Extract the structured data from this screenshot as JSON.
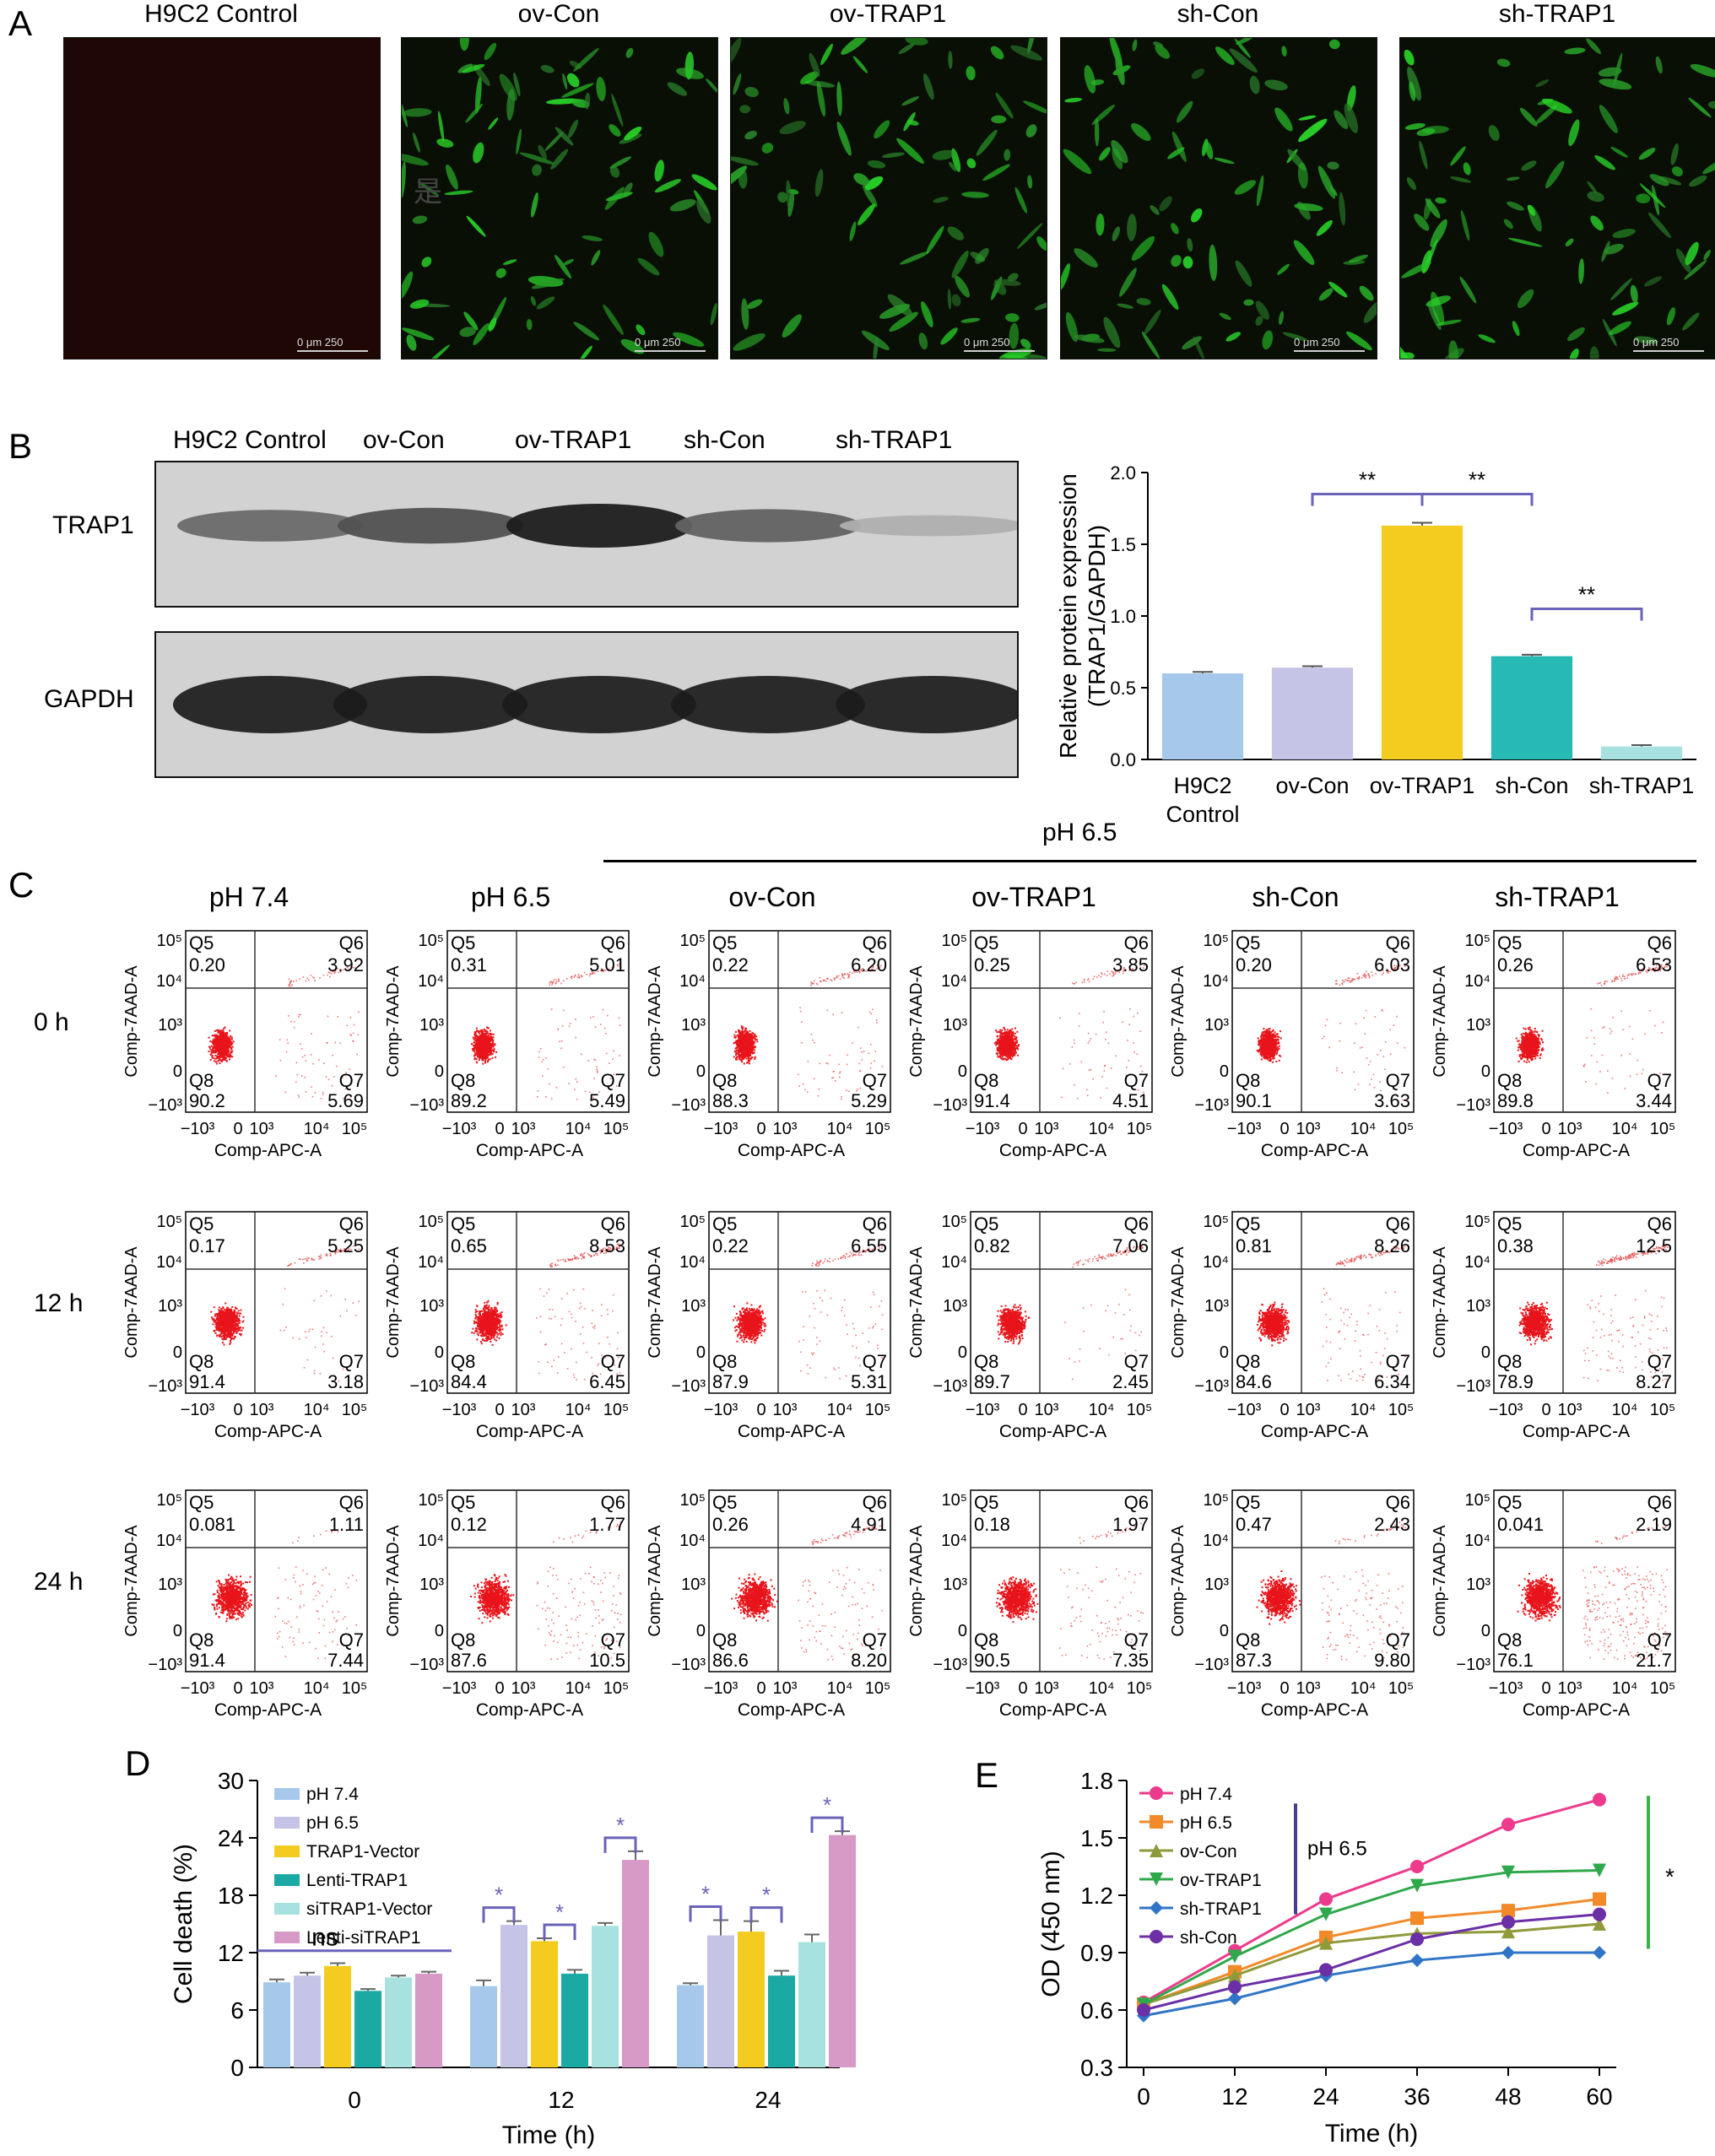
{
  "panel_labels": {
    "a": "A",
    "b": "B",
    "c": "C",
    "d": "D",
    "e": "E"
  },
  "panel_a": {
    "titles": [
      "H9C2 Control",
      "ov-Con",
      "ov-TRAP1",
      "sh-Con",
      "sh-TRAP1"
    ],
    "scale": {
      "zero": "0",
      "unit": "μm",
      "value": "250"
    },
    "artifact_glyph": "是"
  },
  "panel_b": {
    "lane_labels": [
      "H9C2 Control",
      "ov-Con",
      "ov-TRAP1",
      "sh-Con",
      "sh-TRAP1"
    ],
    "row_labels": [
      "TRAP1",
      "GAPDH"
    ],
    "band_intensity": {
      "TRAP1": [
        0.55,
        0.7,
        1.0,
        0.6,
        0.15
      ],
      "GAPDH": [
        1,
        1,
        1,
        1,
        1
      ]
    }
  },
  "panel_c": {
    "header_ph": "pH 6.5",
    "col_titles": [
      "pH 7.4",
      "pH 6.5",
      "ov-Con",
      "ov-TRAP1",
      "sh-Con",
      "sh-TRAP1"
    ],
    "row_titles": [
      "0 h",
      "12 h",
      "24 h"
    ],
    "x_label": "Comp-APC-A",
    "y_label": "Comp-7AAD-A",
    "quadrant_names": [
      "Q5",
      "Q6",
      "Q7",
      "Q8"
    ],
    "x_ticks": [
      "−10³",
      "0",
      "10³",
      "10⁴",
      "10⁵"
    ],
    "y_ticks": [
      "10⁵",
      "10⁴",
      "10³",
      "0",
      "−10³"
    ],
    "values": [
      [
        [
          "0.20",
          "3.92",
          "5.69",
          "90.2"
        ],
        [
          "0.31",
          "5.01",
          "5.49",
          "89.2"
        ],
        [
          "0.22",
          "6.20",
          "5.29",
          "88.3"
        ],
        [
          "0.25",
          "3.85",
          "4.51",
          "91.4"
        ],
        [
          "0.20",
          "6.03",
          "3.63",
          "90.1"
        ],
        [
          "0.26",
          "6.53",
          "3.44",
          "89.8"
        ]
      ],
      [
        [
          "0.17",
          "5.25",
          "3.18",
          "91.4"
        ],
        [
          "0.65",
          "8.53",
          "6.45",
          "84.4"
        ],
        [
          "0.22",
          "6.55",
          "5.31",
          "87.9"
        ],
        [
          "0.82",
          "7.06",
          "2.45",
          "89.7"
        ],
        [
          "0.81",
          "8.26",
          "6.34",
          "84.6"
        ],
        [
          "0.38",
          "12.5",
          "8.27",
          "78.9"
        ]
      ],
      [
        [
          "0.081",
          "1.11",
          "7.44",
          "91.4"
        ],
        [
          "0.12",
          "1.77",
          "10.5",
          "87.6"
        ],
        [
          "0.26",
          "4.91",
          "8.20",
          "86.6"
        ],
        [
          "0.18",
          "1.97",
          "7.35",
          "90.5"
        ],
        [
          "0.47",
          "2.43",
          "9.80",
          "87.3"
        ],
        [
          "0.041",
          "2.19",
          "21.7",
          "76.1"
        ]
      ]
    ]
  },
  "chart_data": [
    {
      "panel": "B",
      "type": "bar",
      "categories": [
        "H9C2\nControl",
        "ov-Con",
        "ov-TRAP1",
        "sh-Con",
        "sh-TRAP1"
      ],
      "values": [
        0.6,
        0.64,
        1.63,
        0.72,
        0.09
      ],
      "errors": [
        0.01,
        0.01,
        0.02,
        0.01,
        0.01
      ],
      "colors": [
        "#a6c8ea",
        "#c5c3e6",
        "#f3cc1f",
        "#27b9b4",
        "#a8e2e0"
      ],
      "ylabel": "Relative protein expression\n(TRAP1/GAPDH)",
      "ylim": [
        0,
        2.0
      ],
      "yticks": [
        "0.0",
        "0.5",
        "1.0",
        "1.5",
        "2.0"
      ],
      "significance": [
        {
          "from": 1,
          "to": 2,
          "label": "**"
        },
        {
          "from": 2,
          "to": 3,
          "label": "**"
        },
        {
          "from": 3,
          "to": 4,
          "label": "**"
        }
      ]
    },
    {
      "panel": "D",
      "type": "bar",
      "categories": [
        "0",
        "12",
        "24"
      ],
      "xlabel": "Time (h)",
      "ylabel": "Cell death (%)",
      "ylim": [
        0,
        30
      ],
      "yticks": [
        "0",
        "6",
        "12",
        "18",
        "24",
        "30"
      ],
      "legend_position": "top-left",
      "series": [
        {
          "name": "pH 7.4",
          "color": "#a6c8ea",
          "values": [
            8.9,
            8.5,
            8.6
          ],
          "errors": [
            0.3,
            0.6,
            0.2
          ]
        },
        {
          "name": "pH 6.5",
          "color": "#c5c3e6",
          "values": [
            9.6,
            14.9,
            13.8
          ],
          "errors": [
            0.3,
            0.4,
            1.6
          ]
        },
        {
          "name": "TRAP1-Vector",
          "color": "#f3cc1f",
          "values": [
            10.6,
            13.2,
            14.2
          ],
          "errors": [
            0.3,
            0.3,
            1.1
          ]
        },
        {
          "name": "Lenti-TRAP1",
          "color": "#1aa9a3",
          "values": [
            8.0,
            9.8,
            9.6
          ],
          "errors": [
            0.2,
            0.4,
            0.5
          ]
        },
        {
          "name": "siTRAP1-Vector",
          "color": "#a8e2e0",
          "values": [
            9.4,
            14.8,
            13.1
          ],
          "errors": [
            0.2,
            0.3,
            0.8
          ]
        },
        {
          "name": "Lenti-siTRAP1",
          "color": "#d79ac6",
          "values": [
            9.8,
            21.7,
            24.3
          ],
          "errors": [
            0.2,
            0.9,
            0.4
          ]
        }
      ],
      "annotations": [
        "ns",
        "*"
      ]
    },
    {
      "panel": "E",
      "type": "line",
      "x": [
        0,
        12,
        24,
        36,
        48,
        60
      ],
      "xlabel": "Time (h)",
      "ylabel": "OD (450 nm)",
      "ylim": [
        0.3,
        1.8
      ],
      "yticks": [
        "0.3",
        "0.6",
        "0.9",
        "1.2",
        "1.5",
        "1.8"
      ],
      "xticks": [
        "0",
        "12",
        "24",
        "36",
        "48",
        "60"
      ],
      "legend_position": "top-left",
      "annotation_ph": "pH 6.5",
      "significance": "*",
      "series": [
        {
          "name": "pH 7.4",
          "color": "#ec3a8c",
          "marker": "circle",
          "values": [
            0.64,
            0.91,
            1.18,
            1.35,
            1.57,
            1.7
          ]
        },
        {
          "name": "pH 6.5",
          "color": "#f28a2a",
          "marker": "square",
          "values": [
            0.63,
            0.8,
            0.98,
            1.08,
            1.12,
            1.18
          ]
        },
        {
          "name": "ov-Con",
          "color": "#8f9a3a",
          "marker": "triangle-up",
          "values": [
            0.63,
            0.78,
            0.95,
            1.0,
            1.01,
            1.05
          ]
        },
        {
          "name": "ov-TRAP1",
          "color": "#2fa84b",
          "marker": "triangle-down",
          "values": [
            0.63,
            0.88,
            1.1,
            1.25,
            1.32,
            1.33
          ]
        },
        {
          "name": "sh-TRAP1",
          "color": "#2f74c6",
          "marker": "diamond",
          "values": [
            0.57,
            0.66,
            0.78,
            0.86,
            0.9,
            0.9
          ]
        },
        {
          "name": "sh-Con",
          "color": "#6b2fa6",
          "marker": "circle",
          "values": [
            0.6,
            0.72,
            0.81,
            0.97,
            1.06,
            1.1
          ]
        }
      ]
    }
  ]
}
